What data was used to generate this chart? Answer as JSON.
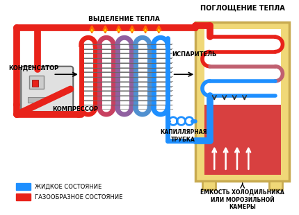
{
  "title": "ПОГЛОЩЕНИЕ ТЕПЛА",
  "bg_color": "#ffffff",
  "red": "#e8221a",
  "blue": "#1e8fff",
  "legend_liquid": "ЖИДКОЕ СОСТОЯНИЕ",
  "legend_gas": "ГАЗООБРАЗНОЕ СОСТОЯНИЕ",
  "label_kondensator": "КОНДЕНСАТОР",
  "label_compressor": "КОМПРЕССОР",
  "label_evaporator": "ИСПАРИТЕЛЬ",
  "label_kapillyar": "КАПИЛЛЯРНАЯ\nТРУБКА",
  "label_heat_out": "ВЫДЕЛЕНИЕ ТЕПЛА",
  "label_emkost": "ЁМКОСТЬ ХОЛОДИЛЬНИКА\nИЛИ МОРОЗИЛЬНОЙ\nКАМЕРЫ"
}
